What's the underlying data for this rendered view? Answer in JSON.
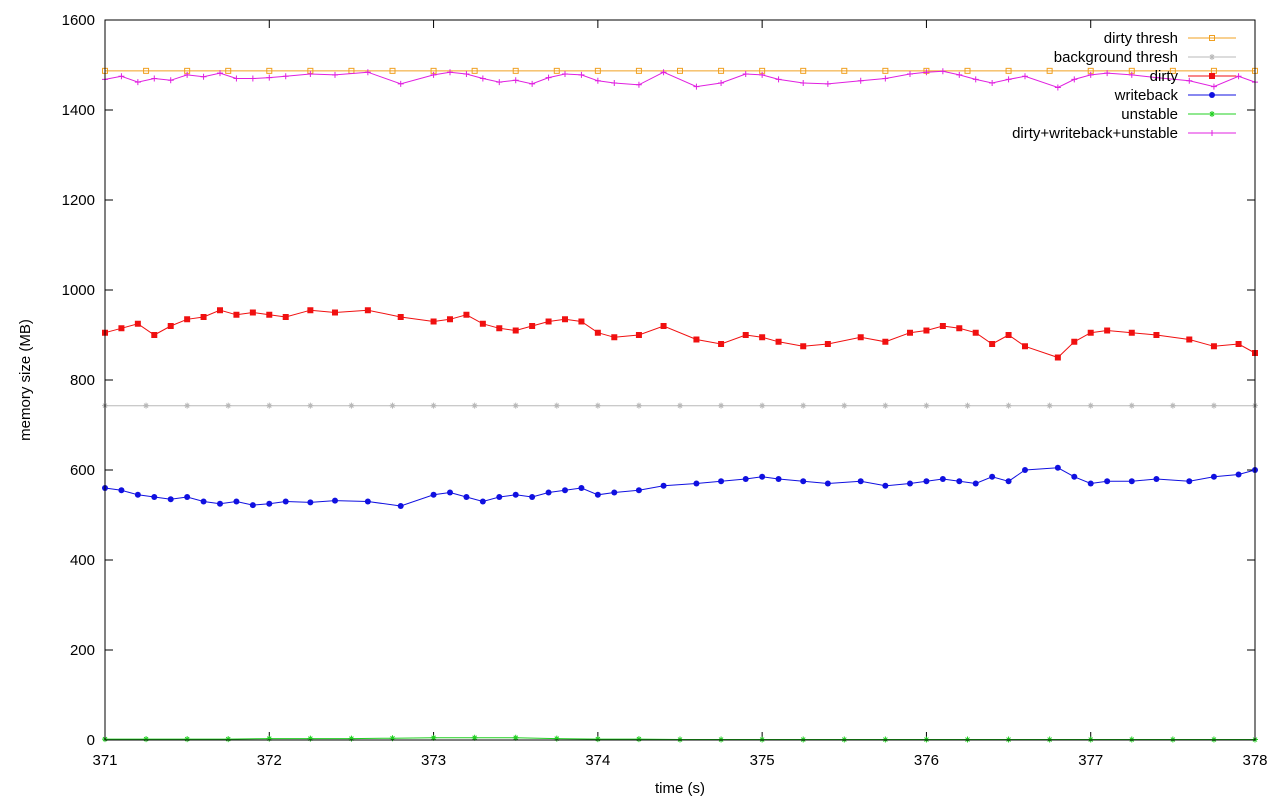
{
  "chart_data": {
    "type": "line",
    "title": "",
    "xlabel": "time (s)",
    "ylabel": "memory size (MB)",
    "xlim": [
      371,
      378
    ],
    "ylim": [
      0,
      1600
    ],
    "xticks": [
      371,
      372,
      373,
      374,
      375,
      376,
      377,
      378
    ],
    "yticks": [
      0,
      200,
      400,
      600,
      800,
      1000,
      1200,
      1400,
      1600
    ],
    "grid": false,
    "legend_position": "top-right",
    "series": [
      {
        "name": "dirty thresh",
        "color": "#f0a020",
        "marker": "square-open",
        "x": [
          371.0,
          371.25,
          371.5,
          371.75,
          372.0,
          372.25,
          372.5,
          372.75,
          373.0,
          373.25,
          373.5,
          373.75,
          374.0,
          374.25,
          374.5,
          374.75,
          375.0,
          375.25,
          375.5,
          375.75,
          376.0,
          376.25,
          376.5,
          376.75,
          377.0,
          377.25,
          377.5,
          377.75,
          378.0
        ],
        "y": [
          1487,
          1487,
          1487,
          1487,
          1487,
          1487,
          1487,
          1487,
          1487,
          1487,
          1487,
          1487,
          1487,
          1487,
          1487,
          1487,
          1487,
          1487,
          1487,
          1487,
          1487,
          1487,
          1487,
          1487,
          1487,
          1487,
          1487,
          1487,
          1487
        ]
      },
      {
        "name": "background thresh",
        "color": "#b8b8b8",
        "marker": "star",
        "x": [
          371.0,
          371.25,
          371.5,
          371.75,
          372.0,
          372.25,
          372.5,
          372.75,
          373.0,
          373.25,
          373.5,
          373.75,
          374.0,
          374.25,
          374.5,
          374.75,
          375.0,
          375.25,
          375.5,
          375.75,
          376.0,
          376.25,
          376.5,
          376.75,
          377.0,
          377.25,
          377.5,
          377.75,
          378.0
        ],
        "y": [
          743,
          743,
          743,
          743,
          743,
          743,
          743,
          743,
          743,
          743,
          743,
          743,
          743,
          743,
          743,
          743,
          743,
          743,
          743,
          743,
          743,
          743,
          743,
          743,
          743,
          743,
          743,
          743,
          743
        ]
      },
      {
        "name": "dirty",
        "color": "#f01010",
        "marker": "square-filled",
        "x": [
          371.0,
          371.1,
          371.2,
          371.3,
          371.4,
          371.5,
          371.6,
          371.7,
          371.8,
          371.9,
          372.0,
          372.1,
          372.25,
          372.4,
          372.6,
          372.8,
          373.0,
          373.1,
          373.2,
          373.3,
          373.4,
          373.5,
          373.6,
          373.7,
          373.8,
          373.9,
          374.0,
          374.1,
          374.25,
          374.4,
          374.6,
          374.75,
          374.9,
          375.0,
          375.1,
          375.25,
          375.4,
          375.6,
          375.75,
          375.9,
          376.0,
          376.1,
          376.2,
          376.3,
          376.4,
          376.5,
          376.6,
          376.8,
          376.9,
          377.0,
          377.1,
          377.25,
          377.4,
          377.6,
          377.75,
          377.9,
          378.0
        ],
        "y": [
          905,
          915,
          925,
          900,
          920,
          935,
          940,
          955,
          945,
          950,
          945,
          940,
          955,
          950,
          955,
          940,
          930,
          935,
          945,
          925,
          915,
          910,
          920,
          930,
          935,
          930,
          905,
          895,
          900,
          920,
          890,
          880,
          900,
          895,
          885,
          875,
          880,
          895,
          885,
          905,
          910,
          920,
          915,
          905,
          880,
          900,
          875,
          850,
          885,
          905,
          910,
          905,
          900,
          890,
          875,
          880,
          860
        ]
      },
      {
        "name": "writeback",
        "color": "#1010e0",
        "marker": "circle-filled",
        "x": [
          371.0,
          371.1,
          371.2,
          371.3,
          371.4,
          371.5,
          371.6,
          371.7,
          371.8,
          371.9,
          372.0,
          372.1,
          372.25,
          372.4,
          372.6,
          372.8,
          373.0,
          373.1,
          373.2,
          373.3,
          373.4,
          373.5,
          373.6,
          373.7,
          373.8,
          373.9,
          374.0,
          374.1,
          374.25,
          374.4,
          374.6,
          374.75,
          374.9,
          375.0,
          375.1,
          375.25,
          375.4,
          375.6,
          375.75,
          375.9,
          376.0,
          376.1,
          376.2,
          376.3,
          376.4,
          376.5,
          376.6,
          376.8,
          376.9,
          377.0,
          377.1,
          377.25,
          377.4,
          377.6,
          377.75,
          377.9,
          378.0
        ],
        "y": [
          560,
          555,
          545,
          540,
          535,
          540,
          530,
          525,
          530,
          522,
          525,
          530,
          528,
          532,
          530,
          520,
          545,
          550,
          540,
          530,
          540,
          545,
          540,
          550,
          555,
          560,
          545,
          550,
          555,
          565,
          570,
          575,
          580,
          585,
          580,
          575,
          570,
          575,
          565,
          570,
          575,
          580,
          575,
          570,
          585,
          575,
          600,
          605,
          585,
          570,
          575,
          575,
          580,
          575,
          585,
          590,
          600
        ]
      },
      {
        "name": "unstable",
        "color": "#20d020",
        "marker": "star",
        "x": [
          371.0,
          371.25,
          371.5,
          371.75,
          372.0,
          372.25,
          372.5,
          372.75,
          373.0,
          373.25,
          373.5,
          373.75,
          374.0,
          374.25,
          374.5,
          374.75,
          375.0,
          375.25,
          375.5,
          375.75,
          376.0,
          376.25,
          376.5,
          376.75,
          377.0,
          377.25,
          377.5,
          377.75,
          378.0
        ],
        "y": [
          2,
          2,
          2,
          2,
          3,
          3,
          3,
          4,
          5,
          5,
          5,
          3,
          2,
          2,
          1,
          1,
          1,
          1,
          1,
          1,
          1,
          1,
          1,
          1,
          1,
          1,
          1,
          1,
          1
        ]
      },
      {
        "name": "dirty+writeback+unstable",
        "color": "#e020e0",
        "marker": "plus",
        "x": [
          371.0,
          371.1,
          371.2,
          371.3,
          371.4,
          371.5,
          371.6,
          371.7,
          371.8,
          371.9,
          372.0,
          372.1,
          372.25,
          372.4,
          372.6,
          372.8,
          373.0,
          373.1,
          373.2,
          373.3,
          373.4,
          373.5,
          373.6,
          373.7,
          373.8,
          373.9,
          374.0,
          374.1,
          374.25,
          374.4,
          374.6,
          374.75,
          374.9,
          375.0,
          375.1,
          375.25,
          375.4,
          375.6,
          375.75,
          375.9,
          376.0,
          376.1,
          376.2,
          376.3,
          376.4,
          376.5,
          376.6,
          376.8,
          376.9,
          377.0,
          377.1,
          377.25,
          377.4,
          377.6,
          377.75,
          377.9,
          378.0
        ],
        "y": [
          1468,
          1475,
          1462,
          1470,
          1466,
          1478,
          1474,
          1482,
          1470,
          1470,
          1472,
          1475,
          1480,
          1478,
          1484,
          1458,
          1478,
          1484,
          1480,
          1470,
          1462,
          1466,
          1458,
          1472,
          1480,
          1478,
          1465,
          1460,
          1456,
          1484,
          1452,
          1460,
          1480,
          1478,
          1468,
          1460,
          1458,
          1465,
          1470,
          1480,
          1484,
          1486,
          1478,
          1468,
          1460,
          1468,
          1475,
          1450,
          1468,
          1478,
          1482,
          1478,
          1472,
          1465,
          1452,
          1475,
          1462
        ]
      }
    ]
  }
}
